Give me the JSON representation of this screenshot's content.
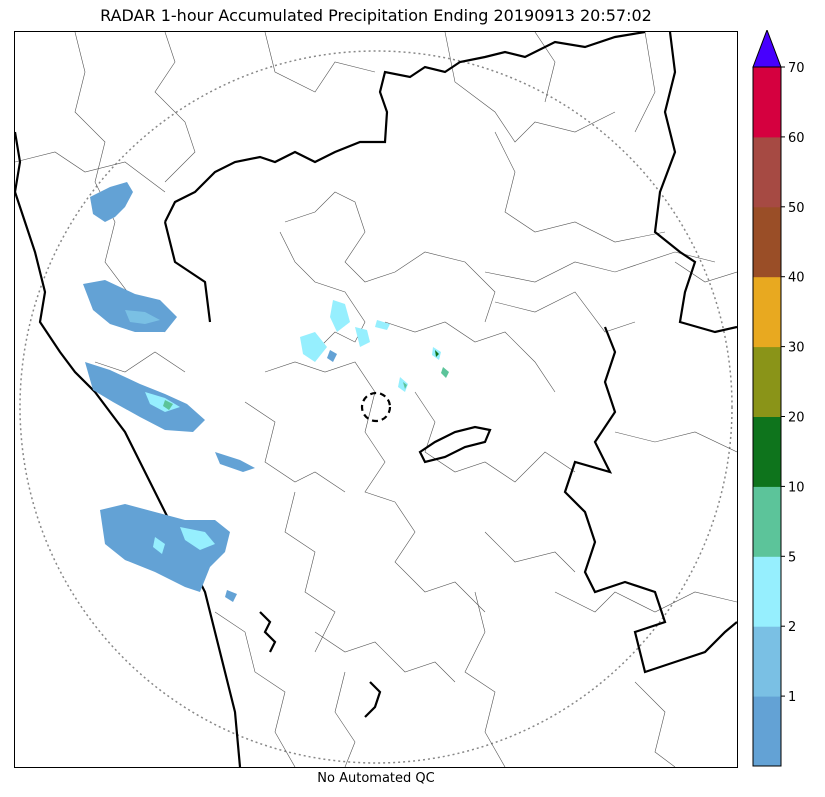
{
  "title": "RADAR 1-hour Accumulated Precipitation Ending 20190913 20:57:02",
  "caption": "No Automated QC",
  "colorbar": {
    "ticks": [
      "1",
      "2",
      "5",
      "10",
      "20",
      "30",
      "40",
      "50",
      "60",
      "70"
    ],
    "colors": [
      "#63a2d5",
      "#7ac0e4",
      "#96effe",
      "#5cc49a",
      "#0e741c",
      "#8a9418",
      "#e8a920",
      "#9a4e27",
      "#a64a43",
      "#d5003f"
    ],
    "extend_color": "#4700fe"
  },
  "legend_colors": {
    "rain_light": "#63a2d5",
    "rain_mid": "#96effe",
    "rain_heavy": "#5cc49a",
    "rain_green": "#0e741c"
  }
}
